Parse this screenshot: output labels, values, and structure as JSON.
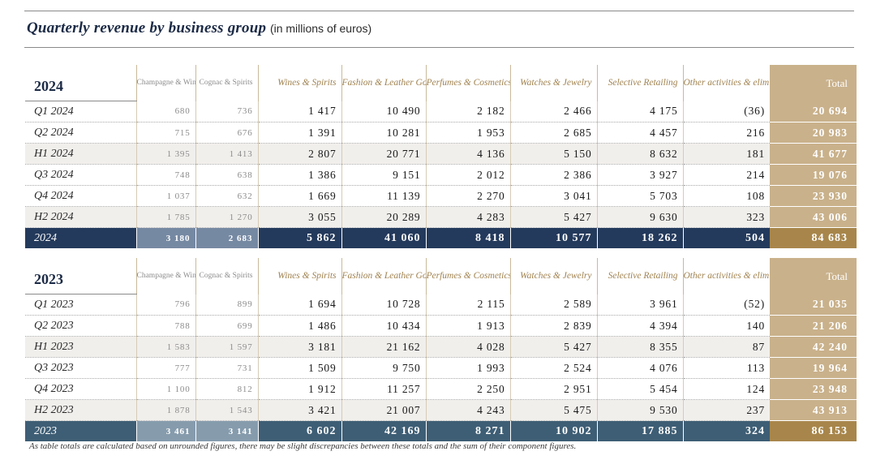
{
  "title": "Quarterly revenue by business group",
  "subtitle": "(in millions of euros)",
  "columns": {
    "champagne": "Champagne & Wines",
    "cognac": "Cognac & Spirits",
    "wines": "Wines & Spirits",
    "fashion": "Fashion & Leather Goods",
    "perfumes": "Perfumes & Cosmetics",
    "watches": "Watches & Jewelry",
    "selective": "Selective Retailing",
    "other": "Other activities & eliminations",
    "total": "Total"
  },
  "tables": [
    {
      "year": "2024",
      "rows": [
        {
          "label": "Q1 2024",
          "v": [
            "680",
            "736",
            "1 417",
            "10 490",
            "2 182",
            "2 466",
            "4 175",
            "(36)",
            "20 694"
          ]
        },
        {
          "label": "Q2 2024",
          "v": [
            "715",
            "676",
            "1 391",
            "10 281",
            "1 953",
            "2 685",
            "4 457",
            "216",
            "20 983"
          ]
        },
        {
          "label": "H1 2024",
          "v": [
            "1 395",
            "1 413",
            "2 807",
            "20 771",
            "4 136",
            "5 150",
            "8 632",
            "181",
            "41 677"
          ]
        },
        {
          "label": "Q3 2024",
          "v": [
            "748",
            "638",
            "1 386",
            "9 151",
            "2 012",
            "2 386",
            "3 927",
            "214",
            "19 076"
          ]
        },
        {
          "label": "Q4 2024",
          "v": [
            "1 037",
            "632",
            "1 669",
            "11 139",
            "2 270",
            "3 041",
            "5 703",
            "108",
            "23 930"
          ]
        },
        {
          "label": "H2 2024",
          "v": [
            "1 785",
            "1 270",
            "3 055",
            "20 289",
            "4 283",
            "5 427",
            "9 630",
            "323",
            "43 006"
          ]
        }
      ],
      "total": {
        "label": "2024",
        "v": [
          "3 180",
          "2 683",
          "5 862",
          "41 060",
          "8 418",
          "10 577",
          "18 262",
          "504",
          "84 683"
        ]
      }
    },
    {
      "year": "2023",
      "rows": [
        {
          "label": "Q1 2023",
          "v": [
            "796",
            "899",
            "1 694",
            "10 728",
            "2 115",
            "2 589",
            "3 961",
            "(52)",
            "21 035"
          ]
        },
        {
          "label": "Q2 2023",
          "v": [
            "788",
            "699",
            "1 486",
            "10 434",
            "1 913",
            "2 839",
            "4 394",
            "140",
            "21 206"
          ]
        },
        {
          "label": "H1 2023",
          "v": [
            "1 583",
            "1 597",
            "3 181",
            "21 162",
            "4 028",
            "5 427",
            "8 355",
            "87",
            "42 240"
          ]
        },
        {
          "label": "Q3 2023",
          "v": [
            "777",
            "731",
            "1 509",
            "9 750",
            "1 993",
            "2 524",
            "4 076",
            "113",
            "19 964"
          ]
        },
        {
          "label": "Q4 2023",
          "v": [
            "1 100",
            "812",
            "1 912",
            "11 257",
            "2 250",
            "2 951",
            "5 454",
            "124",
            "23 948"
          ]
        },
        {
          "label": "H2 2023",
          "v": [
            "1 878",
            "1 543",
            "3 421",
            "21 007",
            "4 243",
            "5 475",
            "9 530",
            "237",
            "43 913"
          ]
        }
      ],
      "total": {
        "label": "2023",
        "v": [
          "3 461",
          "3 141",
          "6 602",
          "42 169",
          "8 271",
          "10 902",
          "17 885",
          "324",
          "86 153"
        ]
      }
    }
  ],
  "footnote": "As table totals are calculated based on unrounded figures, there may be slight discrepancies between these totals and the sum of their component figures."
}
